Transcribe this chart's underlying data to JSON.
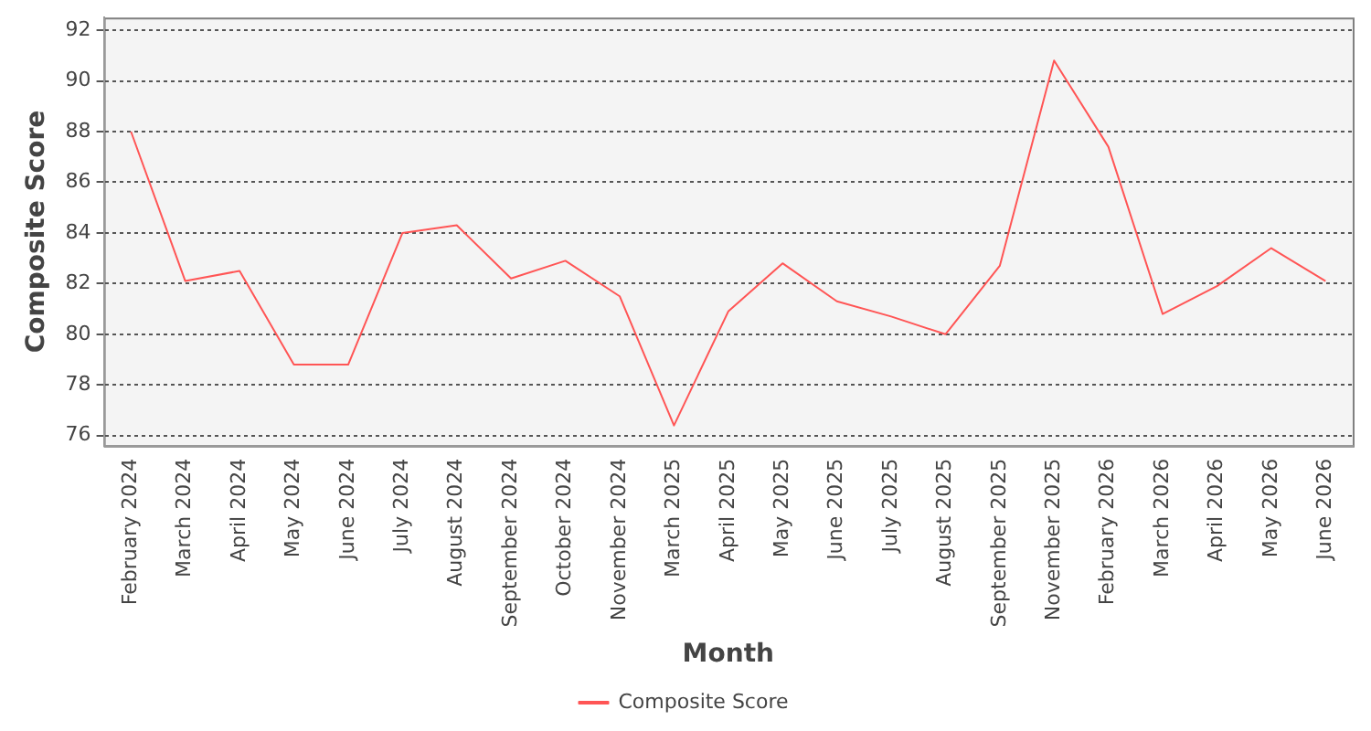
{
  "chart_data": {
    "type": "line",
    "xlabel": "Month",
    "ylabel": "Composite Score",
    "categories": [
      "February 2024",
      "March 2024",
      "April 2024",
      "May 2024",
      "June 2024",
      "July 2024",
      "August 2024",
      "September 2024",
      "October 2024",
      "November 2024",
      "March 2025",
      "April 2025",
      "May 2025",
      "June 2025",
      "July 2025",
      "August 2025",
      "September 2025",
      "November 2025",
      "February 2026",
      "March 2026",
      "April 2026",
      "May 2026",
      "June 2026"
    ],
    "series": [
      {
        "name": "Composite Score",
        "color": "#ff5555",
        "values": [
          88.0,
          82.1,
          82.5,
          78.8,
          78.8,
          84.0,
          84.3,
          82.2,
          82.9,
          81.5,
          76.4,
          80.9,
          82.8,
          81.3,
          80.7,
          80.0,
          82.7,
          90.8,
          87.4,
          80.8,
          81.9,
          83.4,
          82.1
        ]
      }
    ],
    "ylim": [
      75.6,
      92.5
    ],
    "yticks": [
      76,
      78,
      80,
      82,
      84,
      86,
      88,
      90,
      92
    ],
    "grid": "y",
    "legend": "bottom",
    "marker": "none",
    "line_style": "solid"
  }
}
